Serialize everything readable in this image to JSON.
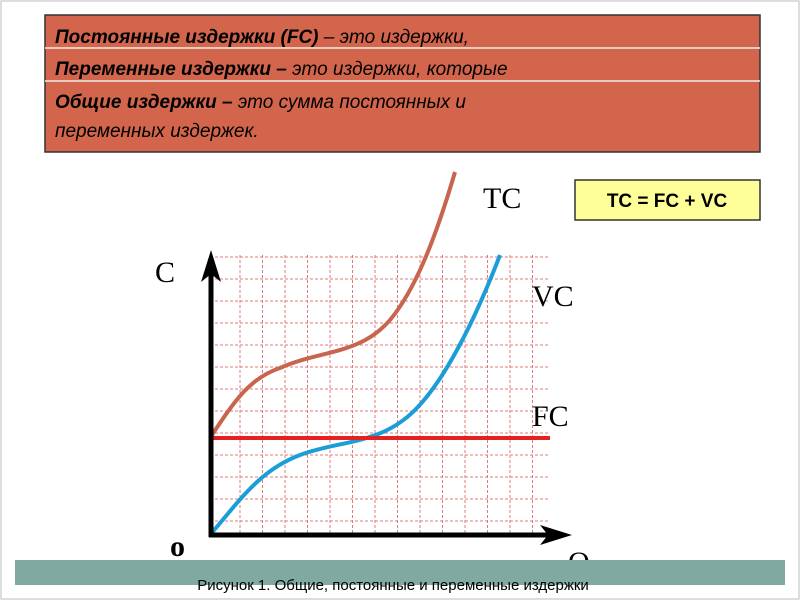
{
  "header": {
    "rows": [
      {
        "term": "Постоянные издержки (FC)",
        "definition": " – это издержки,"
      },
      {
        "term": "Переменные издержки –",
        "definition": " это издержки, которые"
      },
      {
        "term": "Общие издержки –",
        "definition": " это сумма постоянных и",
        "continuation": "переменных издержек."
      }
    ]
  },
  "formula": "TC = FC + VC",
  "graph": {
    "y_axis_label": "C",
    "x_axis_label": "Q",
    "origin_label": "o",
    "curves": {
      "tc": "TC",
      "vc": "VC",
      "fc": "FC"
    }
  },
  "caption": "Рисунок 1. Общие, постоянные и переменные издержки"
}
